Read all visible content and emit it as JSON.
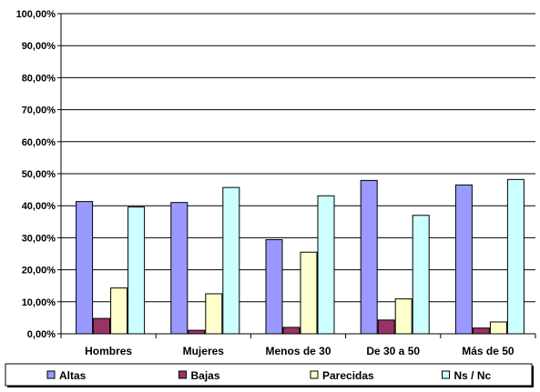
{
  "chart_data": {
    "type": "bar",
    "categories": [
      "Hombres",
      "Mujeres",
      "Menos de 30",
      "De 30 a 50",
      "Más de 50"
    ],
    "series": [
      {
        "name": "Altas",
        "color": "#9999FF",
        "values": [
          41.3,
          41.0,
          29.4,
          47.9,
          46.5
        ]
      },
      {
        "name": "Bajas",
        "color": "#993366",
        "values": [
          4.8,
          1.1,
          2.0,
          4.3,
          1.8
        ]
      },
      {
        "name": "Parecidas",
        "color": "#FFFFCC",
        "values": [
          14.3,
          12.5,
          25.5,
          10.9,
          3.7
        ]
      },
      {
        "name": "Ns / Nc",
        "color": "#CCFFFF",
        "values": [
          39.6,
          45.7,
          43.1,
          37.0,
          48.2
        ]
      }
    ],
    "ylim": [
      0,
      100
    ],
    "y_ticks": [
      "0,00%",
      "10,00%",
      "20,00%",
      "30,00%",
      "40,00%",
      "50,00%",
      "60,00%",
      "70,00%",
      "80,00%",
      "90,00%",
      "100,00%"
    ],
    "grid": true,
    "legend_position": "bottom"
  }
}
